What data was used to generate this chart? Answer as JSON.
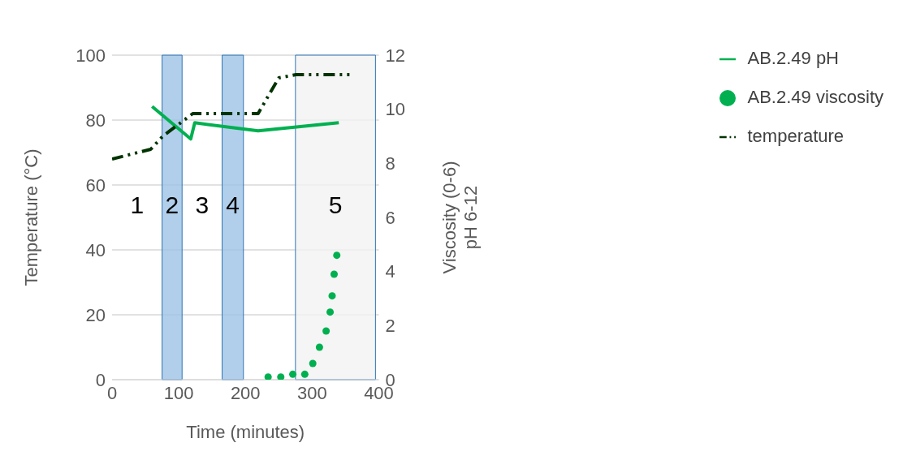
{
  "chart_data": {
    "type": "line",
    "xlabel": "Time (minutes)",
    "ylabel": "Temperature (°C)",
    "y2label": "Viscosity (0-6)\npH 6-12",
    "xlim": [
      0,
      400
    ],
    "xticks": [
      0,
      100,
      200,
      300,
      400
    ],
    "ylim": [
      0,
      100
    ],
    "yticks": [
      0,
      20,
      40,
      60,
      80,
      100
    ],
    "y2lim": [
      0,
      12
    ],
    "y2ticks": [
      0,
      2,
      4,
      6,
      8,
      10,
      12
    ],
    "grid": "y",
    "legend": "top right",
    "series": [
      {
        "name": "AB.2.49 pH",
        "axis": "y2",
        "color": "#00b050",
        "line_style": "solid",
        "marker": "none",
        "x": [
          60,
          118,
          124,
          219,
          340
        ],
        "values": [
          10.1,
          8.9,
          9.5,
          9.2,
          9.5
        ]
      },
      {
        "name": "AB.2.49 viscosity",
        "type": "scatter",
        "axis": "y2",
        "color": "#00b050",
        "marker": "circle",
        "x": [
          234,
          253,
          271,
          289,
          301,
          311,
          321,
          327,
          330,
          333,
          337
        ],
        "values": [
          0.1,
          0.1,
          0.2,
          0.2,
          0.6,
          1.2,
          1.8,
          2.5,
          3.1,
          3.9,
          4.6
        ]
      },
      {
        "name": "temperature",
        "axis": "y",
        "color": "#003300",
        "line_style": "dashed",
        "marker": "none",
        "x": [
          0,
          58,
          76,
          121,
          219,
          250,
          276,
          358
        ],
        "values": [
          68,
          71,
          75,
          82,
          82,
          93,
          94,
          94
        ]
      }
    ],
    "bands": [
      {
        "axis": "x",
        "from": 75,
        "to": 105,
        "color": "#9dc3e6"
      },
      {
        "axis": "x",
        "from": 165,
        "to": 197,
        "color": "#9dc3e6"
      },
      {
        "axis": "x",
        "from": 275,
        "to": 395,
        "color": "#f2f2f2"
      }
    ],
    "annotations": [
      "1",
      "2",
      "3",
      "4",
      "5"
    ]
  }
}
